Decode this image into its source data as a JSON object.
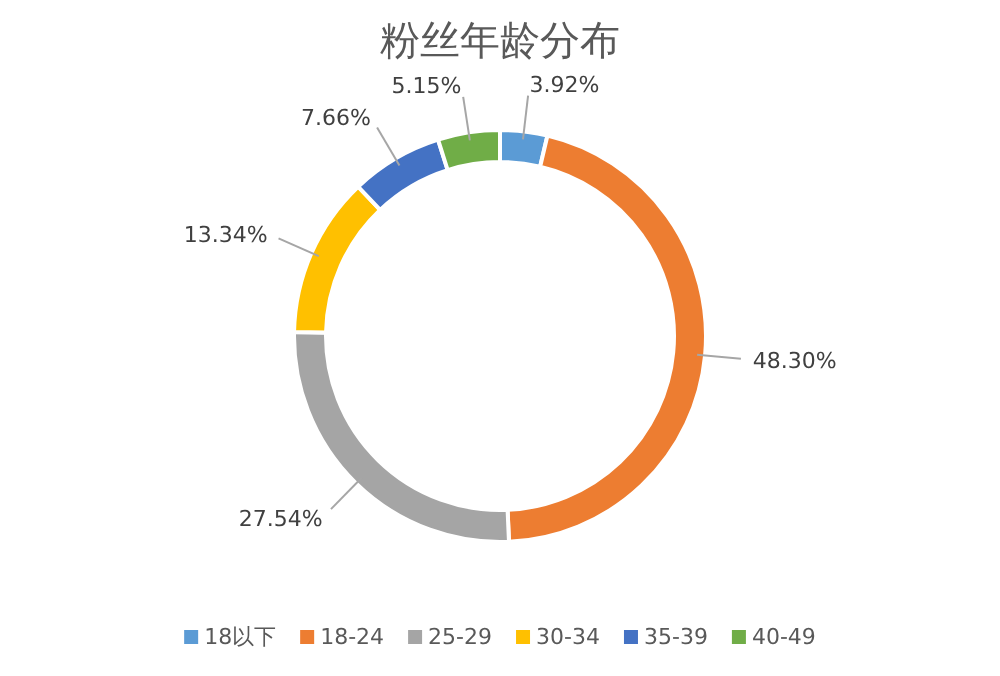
{
  "chart_data": {
    "type": "donut",
    "title": "粉丝年龄分布",
    "categories": [
      "18以下",
      "18-24",
      "25-29",
      "30-34",
      "35-39",
      "40-49"
    ],
    "values": [
      3.92,
      48.3,
      27.54,
      13.34,
      7.66,
      5.15
    ],
    "value_labels": [
      "3.92%",
      "48.30%",
      "27.54%",
      "13.34%",
      "7.66%",
      "5.15%"
    ],
    "colors": [
      "#5b9bd5",
      "#ed7d31",
      "#a5a5a5",
      "#ffc000",
      "#4472c4",
      "#70ad47"
    ],
    "legend": "bottom"
  }
}
